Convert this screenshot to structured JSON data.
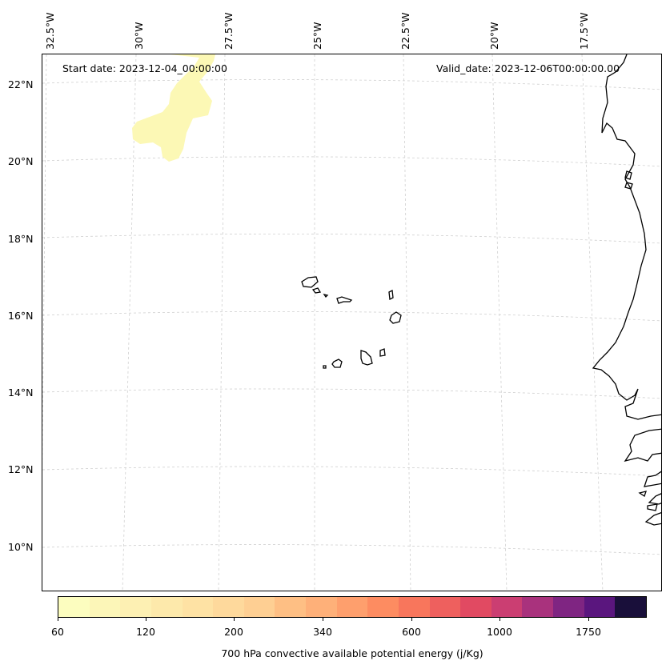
{
  "header": {
    "start_date": "Start date: 2023-12-04_00:00:00",
    "valid_date": "Valid_date: 2023-12-06T00:00:00.00"
  },
  "map": {
    "longitude_labels": [
      "32.5°W",
      "30°W",
      "27.5°W",
      "25°W",
      "22.5°W",
      "20°W",
      "17.5°W"
    ],
    "latitude_labels": [
      "22°N",
      "20°N",
      "18°N",
      "16°N",
      "14°N",
      "12°N",
      "10°N"
    ],
    "gridlines": true,
    "coastline_color": "#000000",
    "gridline_color": "#cccccc"
  },
  "colorbar": {
    "label": "700 hPa convective available potential energy (j/Kg)",
    "tick_labels": [
      "60",
      "120",
      "200",
      "340",
      "600",
      "1000",
      "1750"
    ],
    "colors": [
      "#fcfdbf",
      "#fcf6b8",
      "#fdf0b3",
      "#fde9ab",
      "#fee2a4",
      "#fed99c",
      "#fecf93",
      "#febf84",
      "#feb079",
      "#fe9f6d",
      "#fd8c61",
      "#f8765c",
      "#ee605e",
      "#e14a62",
      "#cb3e72",
      "#a9327d",
      "#7f2582",
      "#5a167e",
      "#190f3a"
    ]
  },
  "cape_region": {
    "color": "#fcf8b5"
  }
}
